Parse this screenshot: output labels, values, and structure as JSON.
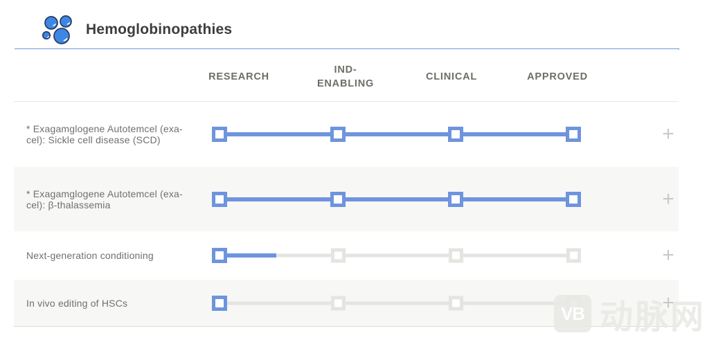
{
  "header": {
    "title": "Hemoglobinopathies",
    "icon": "cells-icon"
  },
  "columns": [
    "RESEARCH",
    "IND-ENABLING",
    "CLINICAL",
    "APPROVED"
  ],
  "rows": [
    {
      "label": "* Exagamglogene Autotemcel (exa-cel): Sickle cell disease (SCD)",
      "stages": [
        true,
        true,
        true,
        true
      ],
      "segments": [
        1,
        1,
        1
      ],
      "expand_label": "+"
    },
    {
      "label": "* Exagamglogene Autotemcel (exa-cel): β-thalassemia",
      "stages": [
        true,
        true,
        true,
        true
      ],
      "segments": [
        1,
        1,
        1
      ],
      "expand_label": "+"
    },
    {
      "label": "Next-generation conditioning",
      "stages": [
        true,
        false,
        false,
        false
      ],
      "segments": [
        0.48,
        0,
        0
      ],
      "expand_label": "+"
    },
    {
      "label": "In vivo editing of HSCs",
      "stages": [
        true,
        false,
        false,
        false
      ],
      "segments": [
        0,
        0,
        0
      ],
      "expand_label": "+"
    }
  ],
  "stage_names": [
    "research",
    "ind-enabling",
    "clinical",
    "approved"
  ],
  "colors": {
    "accent_blue": "#6e94de",
    "inactive_gray": "#e4e4e1",
    "rule_blue": "#7296d4",
    "row_alt_bg": "#f7f7f5",
    "plus_gray": "#c9c9c9",
    "icon_fill": "#3d87e4",
    "icon_stroke": "#2a3a5e"
  },
  "watermark": {
    "logo": "VB",
    "text": "动脉网"
  }
}
